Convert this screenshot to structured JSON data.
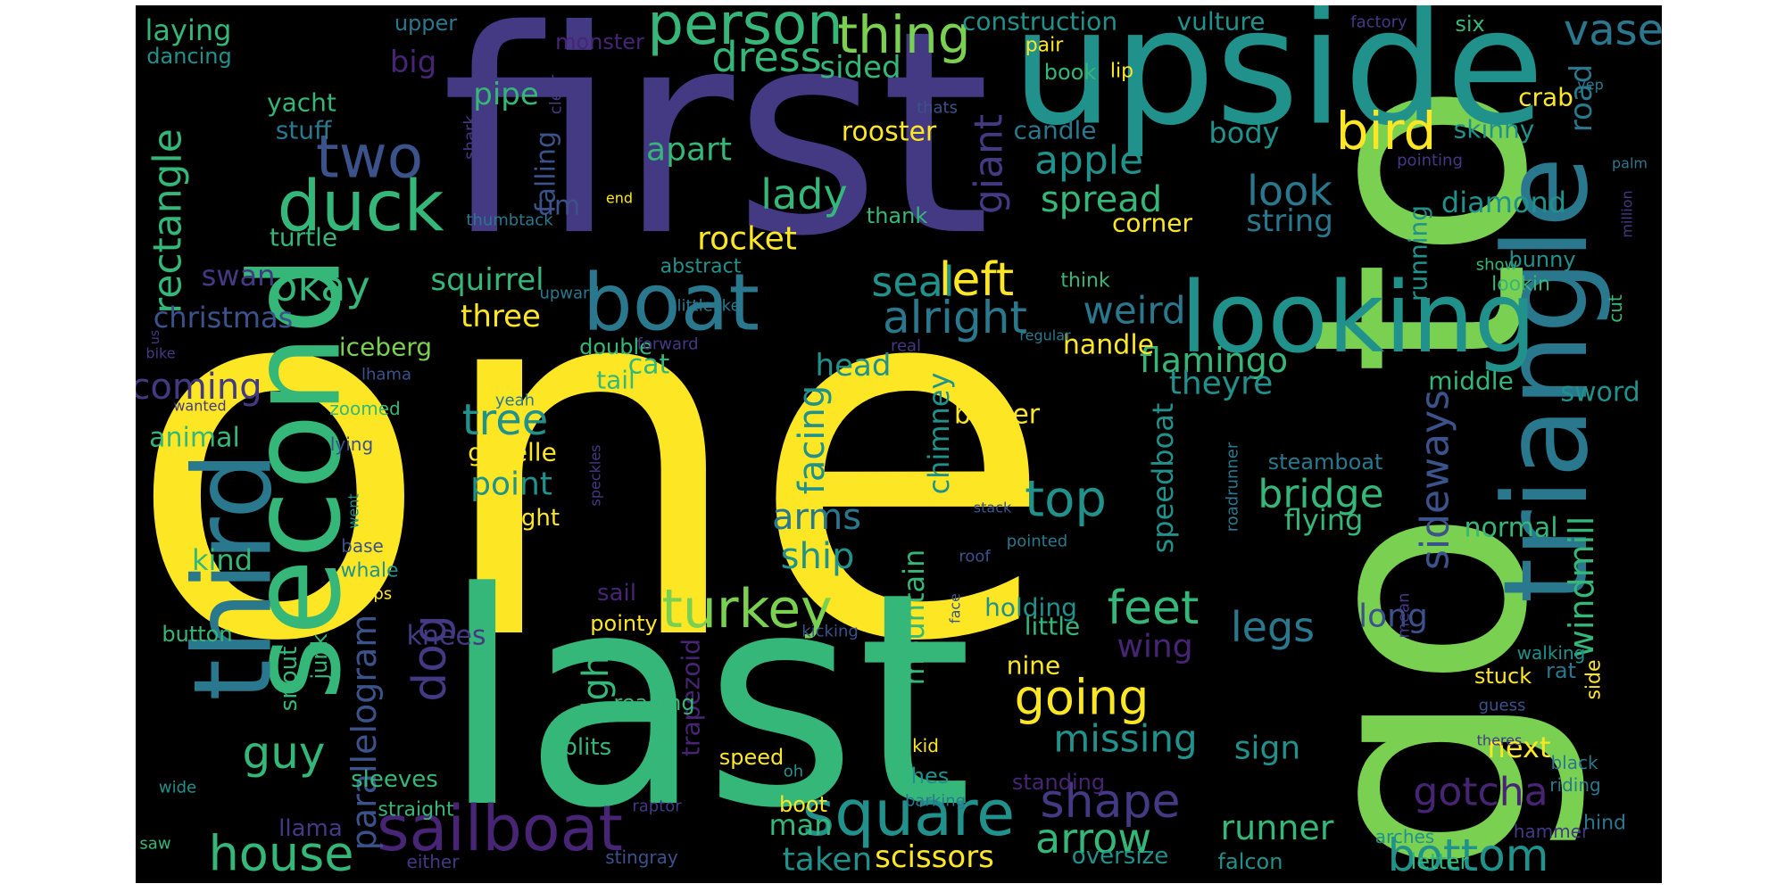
{
  "colors": {
    "background": "#000000",
    "page": "#ffffff",
    "yellow": "#fde725",
    "lime": "#7ad151",
    "green": "#35b779",
    "teal": "#21918c",
    "blue": "#2a788e",
    "indigo": "#3b528b",
    "purple": "#443983",
    "violet": "#482475"
  },
  "words": [
    {
      "text": "one",
      "color": "yellow"
    },
    {
      "text": "first",
      "color": "purple"
    },
    {
      "text": "last",
      "color": "green"
    },
    {
      "text": "to",
      "color": "lime"
    },
    {
      "text": "go",
      "color": "lime"
    },
    {
      "text": "upside",
      "color": "teal"
    },
    {
      "text": "triangle",
      "color": "blue"
    },
    {
      "text": "second",
      "color": "green"
    },
    {
      "text": "third",
      "color": "blue"
    },
    {
      "text": "looking",
      "color": "teal"
    },
    {
      "text": "boat",
      "color": "blue"
    },
    {
      "text": "sailboat",
      "color": "violet"
    },
    {
      "text": "square",
      "color": "teal"
    },
    {
      "text": "duck",
      "color": "green"
    },
    {
      "text": "two",
      "color": "indigo"
    },
    {
      "text": "person",
      "color": "green"
    },
    {
      "text": "thing",
      "color": "lime"
    },
    {
      "text": "bird",
      "color": "yellow"
    },
    {
      "text": "vase",
      "color": "blue"
    },
    {
      "text": "dress",
      "color": "green"
    },
    {
      "text": "house",
      "color": "green"
    },
    {
      "text": "turkey",
      "color": "lime"
    },
    {
      "text": "going",
      "color": "yellow"
    },
    {
      "text": "feet",
      "color": "green"
    },
    {
      "text": "shape",
      "color": "purple"
    },
    {
      "text": "arrow",
      "color": "green"
    },
    {
      "text": "bottom",
      "color": "teal"
    },
    {
      "text": "gotcha",
      "color": "violet"
    },
    {
      "text": "legs",
      "color": "blue"
    },
    {
      "text": "left",
      "color": "yellow"
    },
    {
      "text": "seal",
      "color": "teal"
    },
    {
      "text": "alright",
      "color": "blue"
    },
    {
      "text": "okay",
      "color": "green"
    },
    {
      "text": "top",
      "color": "teal"
    },
    {
      "text": "bridge",
      "color": "green"
    },
    {
      "text": "dog",
      "color": "purple"
    },
    {
      "text": "guy",
      "color": "green"
    },
    {
      "text": "rectangle",
      "color": "green"
    },
    {
      "text": "apple",
      "color": "teal"
    },
    {
      "text": "lady",
      "color": "green"
    },
    {
      "text": "look",
      "color": "blue"
    },
    {
      "text": "weird",
      "color": "blue"
    },
    {
      "text": "sideways",
      "color": "indigo"
    },
    {
      "text": "tree",
      "color": "teal"
    },
    {
      "text": "missing",
      "color": "teal"
    },
    {
      "text": "giant",
      "color": "purple"
    },
    {
      "text": "windmill",
      "color": "green"
    },
    {
      "text": "runner",
      "color": "green"
    },
    {
      "text": "scissors",
      "color": "yellow"
    },
    {
      "text": "spread",
      "color": "green"
    },
    {
      "text": "rocket",
      "color": "yellow"
    },
    {
      "text": "flamingo",
      "color": "green"
    },
    {
      "text": "ship",
      "color": "teal"
    },
    {
      "text": "arms",
      "color": "blue"
    },
    {
      "text": "facing",
      "color": "teal"
    },
    {
      "text": "right",
      "color": "green"
    },
    {
      "text": "parallelogram",
      "color": "indigo"
    },
    {
      "text": "sign",
      "color": "teal"
    },
    {
      "text": "long",
      "color": "indigo"
    },
    {
      "text": "body",
      "color": "teal"
    },
    {
      "text": "string",
      "color": "blue"
    },
    {
      "text": "diamond",
      "color": "teal"
    },
    {
      "text": "speedboat",
      "color": "teal"
    },
    {
      "text": "chimney",
      "color": "teal"
    },
    {
      "text": "mountain",
      "color": "green"
    },
    {
      "text": "coming",
      "color": "purple"
    },
    {
      "text": "christmas",
      "color": "indigo"
    },
    {
      "text": "three",
      "color": "yellow"
    },
    {
      "text": "squirrel",
      "color": "green"
    },
    {
      "text": "swan",
      "color": "purple"
    },
    {
      "text": "head",
      "color": "teal"
    },
    {
      "text": "cat",
      "color": "green"
    },
    {
      "text": "point",
      "color": "teal"
    },
    {
      "text": "kind",
      "color": "green"
    },
    {
      "text": "animal",
      "color": "green"
    },
    {
      "text": "theyre",
      "color": "teal"
    },
    {
      "text": "handle",
      "color": "yellow"
    },
    {
      "text": "middle",
      "color": "green"
    },
    {
      "text": "sword",
      "color": "teal"
    },
    {
      "text": "road",
      "color": "blue"
    },
    {
      "text": "crab",
      "color": "yellow"
    },
    {
      "text": "skinny",
      "color": "teal"
    },
    {
      "text": "running",
      "color": "teal"
    },
    {
      "text": "wing",
      "color": "violet"
    },
    {
      "text": "knees",
      "color": "purple"
    },
    {
      "text": "holding",
      "color": "teal"
    },
    {
      "text": "taken",
      "color": "teal"
    },
    {
      "text": "man",
      "color": "green"
    },
    {
      "text": "next",
      "color": "yellow"
    },
    {
      "text": "normal",
      "color": "green"
    },
    {
      "text": "flying",
      "color": "green"
    },
    {
      "text": "steamboat",
      "color": "blue"
    },
    {
      "text": "bigger",
      "color": "yellow"
    },
    {
      "text": "little",
      "color": "green"
    },
    {
      "text": "nine",
      "color": "yellow"
    },
    {
      "text": "tail",
      "color": "green"
    },
    {
      "text": "gazelle",
      "color": "yellow"
    },
    {
      "text": "upright",
      "color": "yellow"
    },
    {
      "text": "iceberg",
      "color": "lime"
    },
    {
      "text": "double",
      "color": "green"
    },
    {
      "text": "apart",
      "color": "green"
    },
    {
      "text": "rooster",
      "color": "yellow"
    },
    {
      "text": "candle",
      "color": "blue"
    },
    {
      "text": "corner",
      "color": "yellow"
    },
    {
      "text": "pipe",
      "color": "green"
    },
    {
      "text": "big",
      "color": "violet"
    },
    {
      "text": "sided",
      "color": "green"
    },
    {
      "text": "laying",
      "color": "green"
    },
    {
      "text": "dancing",
      "color": "teal"
    },
    {
      "text": "yacht",
      "color": "green"
    },
    {
      "text": "stuff",
      "color": "blue"
    },
    {
      "text": "turtle",
      "color": "green"
    },
    {
      "text": "upper",
      "color": "blue"
    },
    {
      "text": "construction",
      "color": "teal"
    },
    {
      "text": "vulture",
      "color": "teal"
    },
    {
      "text": "monster",
      "color": "violet"
    },
    {
      "text": "factory",
      "color": "purple"
    },
    {
      "text": "six",
      "color": "green"
    },
    {
      "text": "pair",
      "color": "yellow"
    },
    {
      "text": "book",
      "color": "green"
    },
    {
      "text": "lip",
      "color": "yellow"
    },
    {
      "text": "yep",
      "color": "blue"
    },
    {
      "text": "clear",
      "color": "purple"
    },
    {
      "text": "cliffs",
      "color": "purple"
    },
    {
      "text": "thats",
      "color": "indigo"
    },
    {
      "text": "falling",
      "color": "indigo"
    },
    {
      "text": "um",
      "color": "indigo"
    },
    {
      "text": "shark",
      "color": "purple"
    },
    {
      "text": "thumbtack",
      "color": "blue"
    },
    {
      "text": "end",
      "color": "yellow"
    },
    {
      "text": "abstract",
      "color": "teal"
    },
    {
      "text": "thank",
      "color": "green"
    },
    {
      "text": "upward",
      "color": "blue"
    },
    {
      "text": "littlelike",
      "color": "blue"
    },
    {
      "text": "think",
      "color": "green"
    },
    {
      "text": "pointing",
      "color": "purple"
    },
    {
      "text": "palm",
      "color": "blue"
    },
    {
      "text": "million",
      "color": "purple"
    },
    {
      "text": "show",
      "color": "green"
    },
    {
      "text": "bunny",
      "color": "teal"
    },
    {
      "text": "lookin",
      "color": "green"
    },
    {
      "text": "cut",
      "color": "green"
    },
    {
      "text": "us",
      "color": "purple"
    },
    {
      "text": "bike",
      "color": "purple"
    },
    {
      "text": "lhama",
      "color": "indigo"
    },
    {
      "text": "forward",
      "color": "purple"
    },
    {
      "text": "real",
      "color": "purple"
    },
    {
      "text": "regular",
      "color": "blue"
    },
    {
      "text": "wanted",
      "color": "purple"
    },
    {
      "text": "zoomed",
      "color": "green"
    },
    {
      "text": "yeah",
      "color": "blue"
    },
    {
      "text": "lying",
      "color": "indigo"
    },
    {
      "text": "speckles",
      "color": "purple"
    },
    {
      "text": "went",
      "color": "teal"
    },
    {
      "text": "base",
      "color": "indigo"
    },
    {
      "text": "whale",
      "color": "teal"
    },
    {
      "text": "steps",
      "color": "yellow"
    },
    {
      "text": "sail",
      "color": "violet"
    },
    {
      "text": "pointed",
      "color": "blue"
    },
    {
      "text": "roof",
      "color": "indigo"
    },
    {
      "text": "stack",
      "color": "indigo"
    },
    {
      "text": "roadrunner",
      "color": "blue"
    },
    {
      "text": "mean",
      "color": "purple"
    },
    {
      "text": "rat",
      "color": "blue"
    },
    {
      "text": "side",
      "color": "yellow"
    },
    {
      "text": "walking",
      "color": "teal"
    },
    {
      "text": "face",
      "color": "indigo"
    },
    {
      "text": "kicking",
      "color": "indigo"
    },
    {
      "text": "pointy",
      "color": "yellow"
    },
    {
      "text": "trapezoid",
      "color": "violet"
    },
    {
      "text": "reading",
      "color": "green"
    },
    {
      "text": "snout",
      "color": "green"
    },
    {
      "text": "junk",
      "color": "green"
    },
    {
      "text": "button",
      "color": "green"
    },
    {
      "text": "guess",
      "color": "indigo"
    },
    {
      "text": "stuck",
      "color": "yellow"
    },
    {
      "text": "splits",
      "color": "green"
    },
    {
      "text": "speed",
      "color": "yellow"
    },
    {
      "text": "oh",
      "color": "teal"
    },
    {
      "text": "kid",
      "color": "yellow"
    },
    {
      "text": "hes",
      "color": "teal"
    },
    {
      "text": "standing",
      "color": "violet"
    },
    {
      "text": "barking",
      "color": "blue"
    },
    {
      "text": "boot",
      "color": "yellow"
    },
    {
      "text": "raptor",
      "color": "purple"
    },
    {
      "text": "sleeves",
      "color": "green"
    },
    {
      "text": "straight",
      "color": "green"
    },
    {
      "text": "llama",
      "color": "purple"
    },
    {
      "text": "saw",
      "color": "green"
    },
    {
      "text": "wide",
      "color": "teal"
    },
    {
      "text": "either",
      "color": "purple"
    },
    {
      "text": "stingray",
      "color": "indigo"
    },
    {
      "text": "oversize",
      "color": "teal"
    },
    {
      "text": "falcon",
      "color": "teal"
    },
    {
      "text": "arches",
      "color": "teal"
    },
    {
      "text": "letter",
      "color": "green"
    },
    {
      "text": "hammer",
      "color": "purple"
    },
    {
      "text": "hind",
      "color": "blue"
    },
    {
      "text": "black",
      "color": "blue"
    },
    {
      "text": "riding",
      "color": "blue"
    },
    {
      "text": "theres",
      "color": "purple"
    }
  ]
}
